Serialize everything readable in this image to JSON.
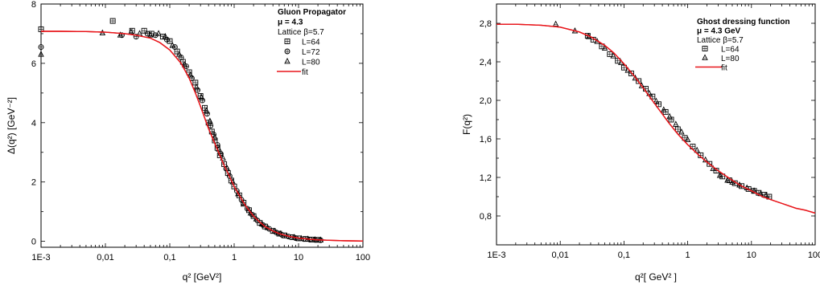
{
  "chart_data": [
    {
      "type": "scatter",
      "title": "Gluon Propagator",
      "xlabel": "q² [GeV²]",
      "ylabel": "Δ(q²) [GeV⁻²]",
      "xscale": "log",
      "xlim": [
        0.001,
        100
      ],
      "ylim": [
        -0.2,
        8
      ],
      "x_ticks": [
        0.001,
        0.01,
        0.1,
        1,
        10,
        100
      ],
      "x_tick_labels": [
        "1E-3",
        "0,01",
        "0,1",
        "1",
        "10",
        "100"
      ],
      "y_ticks": [
        0,
        2,
        4,
        6,
        8
      ],
      "y_tick_labels": [
        "0",
        "2",
        "4",
        "6",
        "8"
      ],
      "legend_position": "top-right",
      "legend_lines": [
        "Gluon Propagator",
        "μ = 4.3",
        "Lattice β=5.7"
      ],
      "grid": false,
      "series": [
        {
          "name": "L=64",
          "marker": "square",
          "x": [
            0.001,
            0.013,
            0.026,
            0.04,
            0.052,
            0.078,
            0.1,
            0.13,
            0.16,
            0.2,
            0.25,
            0.3,
            0.35,
            0.4,
            0.45,
            0.5,
            0.55,
            0.6,
            0.7,
            0.8,
            0.9,
            1.0,
            1.2,
            1.4,
            1.7,
            2.0,
            2.5,
            3.0,
            4.0,
            5.0,
            6.0,
            8.0,
            10,
            13,
            16,
            20
          ],
          "y": [
            7.15,
            7.43,
            7.1,
            7.1,
            7.0,
            6.9,
            6.75,
            6.4,
            6.05,
            5.7,
            5.35,
            4.9,
            4.5,
            4.0,
            3.7,
            3.4,
            3.15,
            2.9,
            2.6,
            2.3,
            2.05,
            1.85,
            1.55,
            1.3,
            1.05,
            0.85,
            0.62,
            0.5,
            0.35,
            0.26,
            0.2,
            0.14,
            0.1,
            0.08,
            0.06,
            0.05
          ]
        },
        {
          "name": "L=72",
          "marker": "circle-plus",
          "x": [
            0.001,
            0.018,
            0.03,
            0.045,
            0.06,
            0.09,
            0.12,
            0.15,
            0.18,
            0.22,
            0.27,
            0.32,
            0.38,
            0.43,
            0.48,
            0.55,
            0.62,
            0.75,
            0.85,
            1.1,
            1.3,
            1.6,
            1.9,
            2.3,
            2.8,
            3.5,
            4.5,
            5.5,
            7.0,
            9.0,
            12,
            15,
            18,
            22
          ],
          "y": [
            6.55,
            6.95,
            6.9,
            7.0,
            6.95,
            6.8,
            6.55,
            6.2,
            5.9,
            5.5,
            5.1,
            4.75,
            4.3,
            3.9,
            3.6,
            3.25,
            2.95,
            2.45,
            2.2,
            1.7,
            1.4,
            1.1,
            0.9,
            0.7,
            0.55,
            0.42,
            0.3,
            0.22,
            0.16,
            0.11,
            0.08,
            0.06,
            0.05,
            0.04
          ]
        },
        {
          "name": "L=80",
          "marker": "triangle",
          "x": [
            0.001,
            0.009,
            0.017,
            0.025,
            0.034,
            0.05,
            0.067,
            0.085,
            0.11,
            0.14,
            0.17,
            0.21,
            0.26,
            0.31,
            0.37,
            0.42,
            0.5,
            0.58,
            0.67,
            0.78,
            0.95,
            1.15,
            1.4,
            1.8,
            2.2,
            2.7,
            3.3,
            4.2,
            5.2,
            6.5,
            8.5,
            11,
            14,
            18,
            22
          ],
          "y": [
            6.3,
            7.02,
            6.95,
            7.05,
            7.0,
            6.95,
            7.0,
            6.9,
            6.6,
            6.3,
            5.95,
            5.6,
            5.2,
            4.85,
            4.4,
            4.05,
            3.5,
            3.1,
            2.8,
            2.45,
            2.0,
            1.6,
            1.25,
            0.95,
            0.75,
            0.58,
            0.46,
            0.34,
            0.25,
            0.18,
            0.13,
            0.09,
            0.07,
            0.05,
            0.04
          ]
        },
        {
          "name": "fit",
          "line": true,
          "color": "#e8161b",
          "x": [
            0.001,
            0.002,
            0.005,
            0.01,
            0.02,
            0.03,
            0.05,
            0.07,
            0.1,
            0.15,
            0.2,
            0.25,
            0.3,
            0.4,
            0.5,
            0.6,
            0.7,
            0.8,
            1.0,
            1.2,
            1.5,
            2.0,
            2.5,
            3.0,
            4.0,
            5.0,
            7.0,
            10,
            15,
            20,
            30,
            50,
            100
          ],
          "y": [
            7.08,
            7.08,
            7.07,
            7.05,
            7.0,
            6.95,
            6.85,
            6.7,
            6.45,
            6.0,
            5.5,
            5.0,
            4.55,
            3.8,
            3.3,
            2.9,
            2.55,
            2.3,
            1.85,
            1.55,
            1.2,
            0.85,
            0.65,
            0.5,
            0.35,
            0.26,
            0.17,
            0.11,
            0.07,
            0.05,
            0.035,
            0.02,
            0.01
          ]
        }
      ]
    },
    {
      "type": "scatter",
      "title": "Ghost dressing function",
      "xlabel": "q²[ GeV² ]",
      "ylabel": "F(q²)",
      "xscale": "log",
      "xlim": [
        0.001,
        100
      ],
      "ylim": [
        0.5,
        3.0
      ],
      "x_ticks": [
        0.001,
        0.01,
        0.1,
        1,
        10,
        100
      ],
      "x_tick_labels": [
        "1E-3",
        "0,01",
        "0,1",
        "1",
        "10",
        "100"
      ],
      "y_ticks": [
        0.8,
        1.2,
        1.6,
        2.0,
        2.4,
        2.8
      ],
      "y_tick_labels": [
        "0,8",
        "1,2",
        "1,6",
        "2,0",
        "2,4",
        "2,8"
      ],
      "legend_position": "top-right",
      "legend_lines": [
        "Ghost dressing function",
        "μ = 4.3 GeV",
        "Lattice β=5.7"
      ],
      "grid": false,
      "series": [
        {
          "name": "L=64",
          "marker": "square",
          "x": [
            0.027,
            0.033,
            0.045,
            0.06,
            0.08,
            0.1,
            0.13,
            0.17,
            0.22,
            0.28,
            0.35,
            0.45,
            0.55,
            0.7,
            0.9,
            1.2,
            1.6,
            2.2,
            2.8,
            3.5,
            4.5,
            5.5,
            7.0,
            9.0,
            11,
            13,
            16,
            19
          ],
          "y": [
            2.67,
            2.63,
            2.56,
            2.48,
            2.41,
            2.34,
            2.28,
            2.2,
            2.12,
            2.04,
            1.96,
            1.88,
            1.8,
            1.7,
            1.61,
            1.52,
            1.43,
            1.34,
            1.27,
            1.21,
            1.17,
            1.14,
            1.11,
            1.08,
            1.06,
            1.04,
            1.02,
            1.0
          ]
        },
        {
          "name": "L=80",
          "marker": "triangle",
          "x": [
            0.0085,
            0.017,
            0.028,
            0.038,
            0.05,
            0.068,
            0.09,
            0.115,
            0.15,
            0.19,
            0.25,
            0.32,
            0.42,
            0.52,
            0.65,
            0.8,
            1.0,
            1.4,
            1.9,
            2.5,
            3.2,
            4.2,
            5.0,
            6.5,
            8.5,
            11,
            14,
            17
          ],
          "y": [
            2.79,
            2.72,
            2.66,
            2.61,
            2.54,
            2.46,
            2.39,
            2.31,
            2.23,
            2.15,
            2.07,
            1.99,
            1.9,
            1.83,
            1.75,
            1.67,
            1.59,
            1.48,
            1.38,
            1.29,
            1.22,
            1.17,
            1.15,
            1.12,
            1.09,
            1.06,
            1.03,
            1.01
          ]
        },
        {
          "name": "fit",
          "line": true,
          "color": "#e8161b",
          "x": [
            0.001,
            0.002,
            0.005,
            0.01,
            0.02,
            0.03,
            0.05,
            0.07,
            0.1,
            0.15,
            0.2,
            0.3,
            0.5,
            0.7,
            1.0,
            1.5,
            2.0,
            3.0,
            5.0,
            7.0,
            10,
            15,
            20,
            30,
            50,
            70,
            100
          ],
          "y": [
            2.79,
            2.79,
            2.78,
            2.76,
            2.71,
            2.66,
            2.57,
            2.49,
            2.38,
            2.24,
            2.13,
            1.97,
            1.77,
            1.65,
            1.54,
            1.43,
            1.36,
            1.27,
            1.17,
            1.11,
            1.06,
            1.0,
            0.97,
            0.93,
            0.88,
            0.86,
            0.83
          ]
        }
      ]
    }
  ]
}
